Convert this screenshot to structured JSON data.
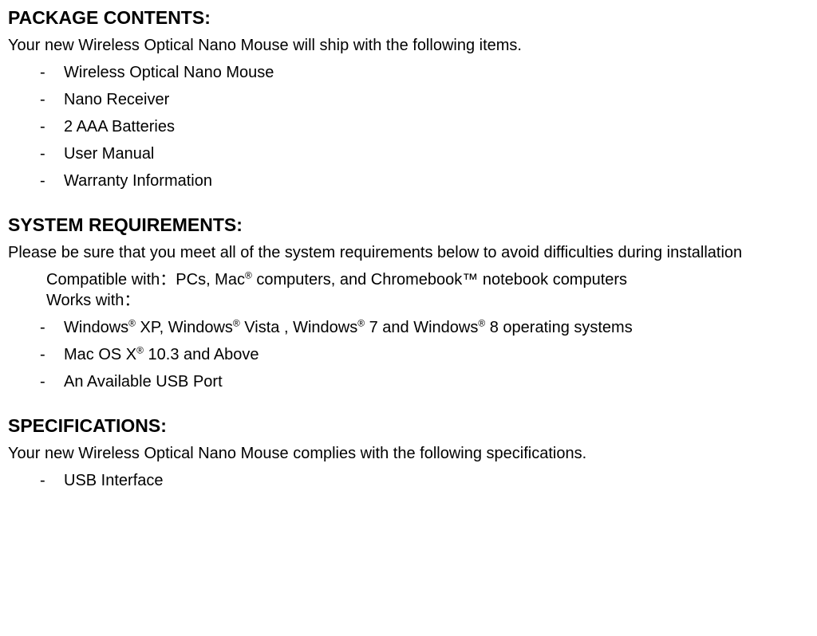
{
  "package": {
    "heading": "PACKAGE CONTENTS:",
    "intro": "Your new Wireless Optical Nano Mouse will ship with the following items.",
    "items": [
      "Wireless Optical Nano Mouse",
      "Nano Receiver",
      "2 AAA Batteries",
      "User Manual",
      "Warranty Information"
    ]
  },
  "system": {
    "heading": "SYSTEM REQUIREMENTS:",
    "intro": "Please be sure that you meet all of the system requirements below to avoid difficulties during installation",
    "compat_line1": "Compatible with：PCs, Mac® computers, and Chromebook™ notebook computers",
    "compat_line2": "Works with：",
    "items": [
      "Windows® XP, Windows® Vista , Windows® 7 and Windows® 8 operating systems",
      "Mac OS X® 10.3 and Above",
      "An Available USB Port"
    ]
  },
  "specs": {
    "heading": "SPECIFICATIONS:",
    "intro": "Your new Wireless Optical Nano Mouse complies with the following specifications.",
    "items": [
      "USB Interface"
    ]
  }
}
